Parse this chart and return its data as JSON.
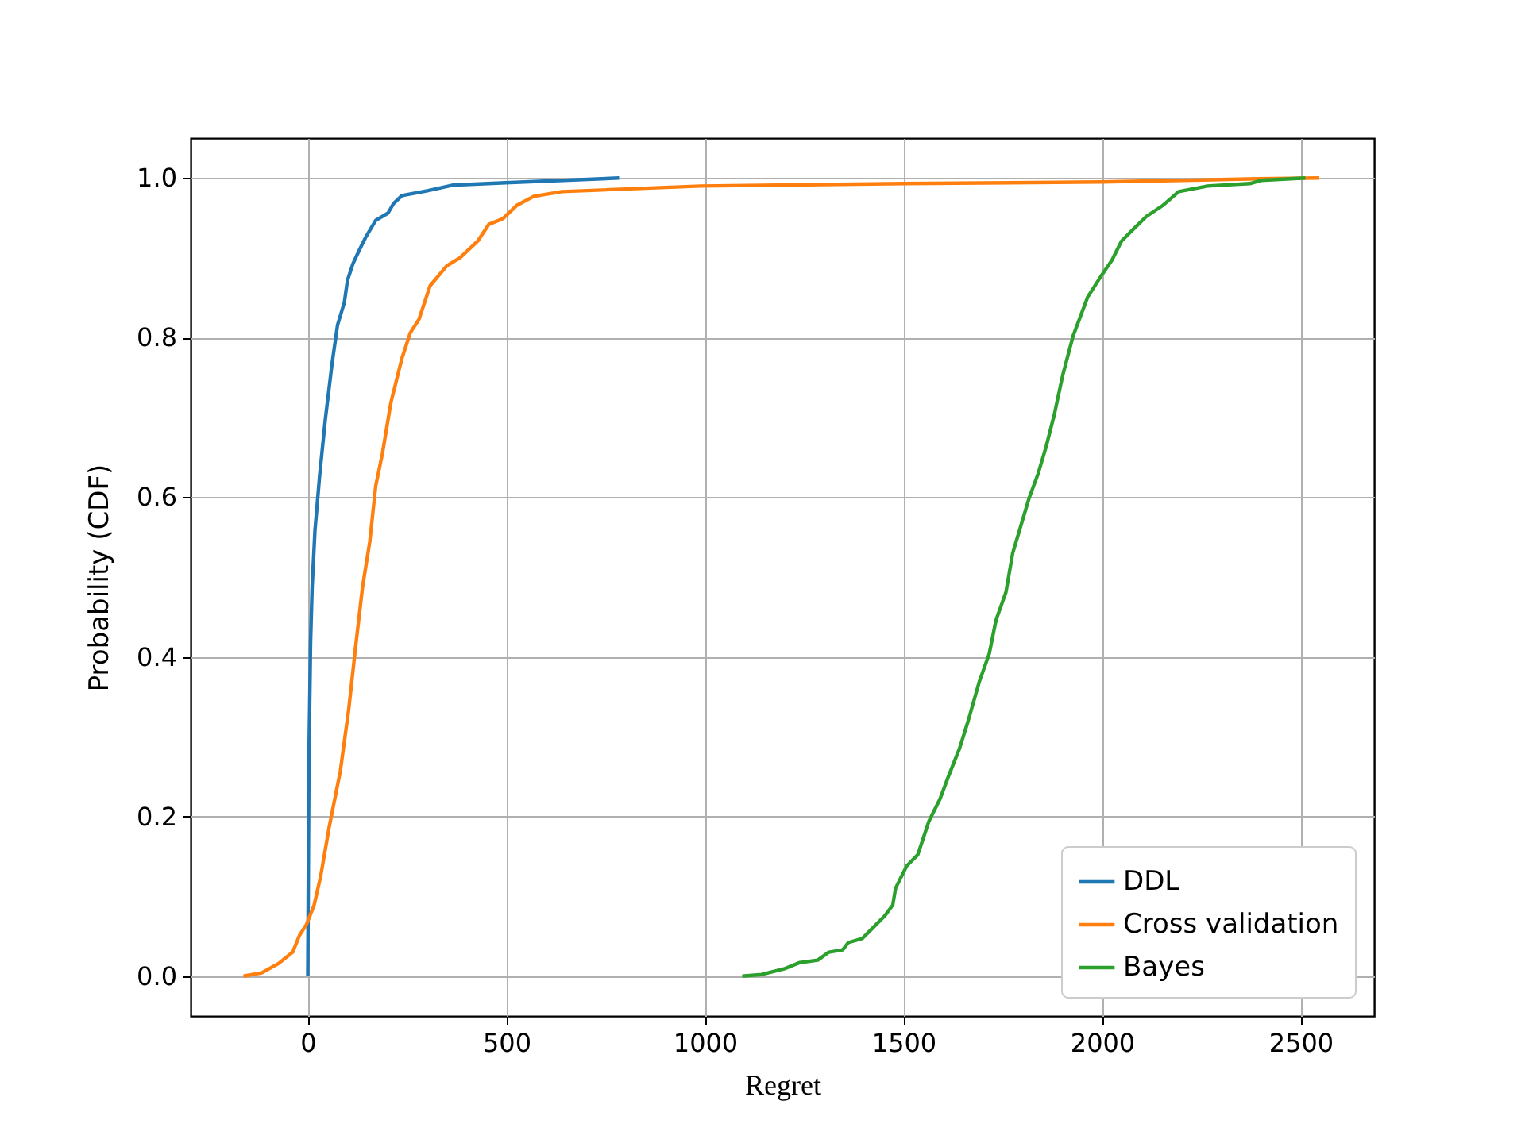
{
  "chart_data": {
    "type": "line",
    "xlabel": "Regret",
    "ylabel": "Probability (CDF)",
    "xlim": [
      -295,
      2685
    ],
    "ylim": [
      -0.05,
      1.05
    ],
    "xticks": [
      0,
      500,
      1000,
      1500,
      2000,
      2500
    ],
    "yticks": [
      {
        "value": 0,
        "label": "0.0"
      },
      {
        "value": 0.2,
        "label": "0.2"
      },
      {
        "value": 0.4,
        "label": "0.4"
      },
      {
        "value": 0.6,
        "label": "0.6"
      },
      {
        "value": 0.8,
        "label": "0.8"
      },
      {
        "value": 1,
        "label": "1.0"
      }
    ],
    "grid": true,
    "legend": "bottom right",
    "series": [
      {
        "name": "DDL",
        "color": "#1f77b4",
        "x": [
          0,
          3,
          7,
          11,
          18,
          30,
          44,
          61,
          75,
          92,
          100,
          114,
          131,
          145,
          171,
          202,
          216,
          237,
          301,
          364,
          498,
          784
        ],
        "values": [
          0,
          0.278,
          0.418,
          0.488,
          0.558,
          0.628,
          0.697,
          0.767,
          0.816,
          0.844,
          0.872,
          0.893,
          0.911,
          0.925,
          0.947,
          0.956,
          0.968,
          0.978,
          0.984,
          0.991,
          0.994,
          1.0
        ]
      },
      {
        "name": "Cross validation",
        "color": "#ff7f0e",
        "x": [
          -162,
          -116,
          -73,
          -38,
          -21,
          -3,
          16,
          32,
          54,
          82,
          103,
          120,
          138,
          156,
          171,
          188,
          209,
          237,
          258,
          280,
          308,
          350,
          383,
          428,
          456,
          491,
          527,
          569,
          640,
          989,
          1500,
          2000,
          2393,
          2547
        ],
        "values": [
          0,
          0.004,
          0.016,
          0.03,
          0.051,
          0.065,
          0.089,
          0.124,
          0.187,
          0.257,
          0.334,
          0.411,
          0.488,
          0.544,
          0.614,
          0.655,
          0.718,
          0.774,
          0.806,
          0.823,
          0.865,
          0.89,
          0.9,
          0.921,
          0.942,
          0.949,
          0.966,
          0.977,
          0.983,
          0.99,
          0.993,
          0.995,
          0.999,
          1.0
        ]
      },
      {
        "name": "Bayes",
        "color": "#2ca02c",
        "x": [
          1094,
          1143,
          1199,
          1239,
          1284,
          1312,
          1347,
          1361,
          1396,
          1424,
          1452,
          1473,
          1480,
          1508,
          1536,
          1550,
          1564,
          1592,
          1613,
          1641,
          1663,
          1691,
          1716,
          1733,
          1758,
          1775,
          1796,
          1817,
          1838,
          1859,
          1880,
          1901,
          1927,
          1964,
          2000,
          2025,
          2049,
          2077,
          2112,
          2154,
          2193,
          2266,
          2372,
          2400,
          2512
        ],
        "values": [
          0,
          0.002,
          0.009,
          0.017,
          0.02,
          0.03,
          0.033,
          0.042,
          0.047,
          0.061,
          0.075,
          0.089,
          0.11,
          0.138,
          0.152,
          0.173,
          0.194,
          0.222,
          0.25,
          0.285,
          0.32,
          0.369,
          0.404,
          0.446,
          0.481,
          0.53,
          0.565,
          0.6,
          0.628,
          0.663,
          0.704,
          0.753,
          0.802,
          0.851,
          0.879,
          0.897,
          0.921,
          0.935,
          0.952,
          0.966,
          0.983,
          0.99,
          0.993,
          0.997,
          1.0
        ]
      }
    ]
  }
}
